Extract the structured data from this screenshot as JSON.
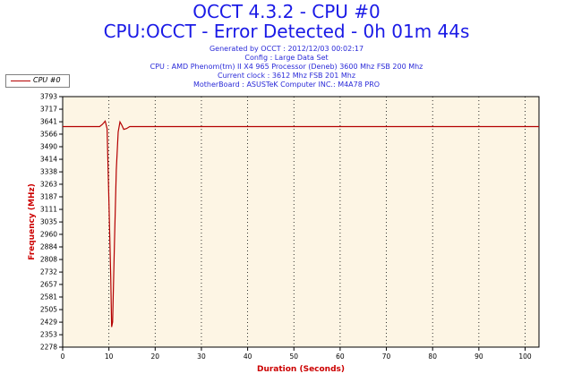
{
  "title": "OCCT 4.3.2 - CPU #0",
  "subtitle": "CPU:OCCT - Error Detected - 0h 01m 44s",
  "info_lines": [
    "Generated by OCCT : 2012/12/03 00:02:17",
    "Config : Large Data Set",
    "CPU : AMD Phenom(tm) II X4 965 Processor (Deneb) 3600 Mhz FSB 200 Mhz",
    "Current clock : 3612 Mhz FSB 201 Mhz",
    "MotherBoard : ASUSTeK Computer INC.: M4A78 PRO"
  ],
  "colors": {
    "title": "#1a1ae6",
    "info": "#2a2ad8",
    "plot_background": "#fdf5e4",
    "series": "#b40000",
    "axis_title": "#cc0000",
    "grid": "#000000"
  },
  "chart_data": {
    "type": "line",
    "title": "OCCT 4.3.2 - CPU #0",
    "xlabel": "Duration (Seconds)",
    "ylabel": "Frequency (MHz)",
    "xlim": [
      0,
      103
    ],
    "ylim": [
      2278,
      3793
    ],
    "xticks": [
      0,
      10,
      20,
      30,
      40,
      50,
      60,
      70,
      80,
      90,
      100
    ],
    "yticks": [
      2278,
      2353,
      2429,
      2505,
      2581,
      2657,
      2732,
      2808,
      2884,
      2960,
      3035,
      3111,
      3187,
      3263,
      3338,
      3414,
      3490,
      3566,
      3641,
      3717,
      3793
    ],
    "grid": "vertical dotted at x ticks",
    "legend": "top-left",
    "series": [
      {
        "name": "CPU #0",
        "x": [
          0,
          8,
          8.6,
          9.2,
          9.6,
          10.0,
          10.4,
          10.6,
          10.8,
          11.2,
          11.6,
          12.0,
          12.4,
          12.8,
          13.2,
          13.8,
          14.5,
          16,
          20,
          30,
          40,
          50,
          60,
          70,
          80,
          90,
          100,
          103
        ],
        "y": [
          3612,
          3612,
          3625,
          3645,
          3600,
          3150,
          2700,
          2400,
          2430,
          2900,
          3350,
          3580,
          3640,
          3620,
          3595,
          3600,
          3612,
          3612,
          3612,
          3612,
          3612,
          3612,
          3612,
          3612,
          3612,
          3612,
          3612,
          3612
        ]
      }
    ]
  }
}
